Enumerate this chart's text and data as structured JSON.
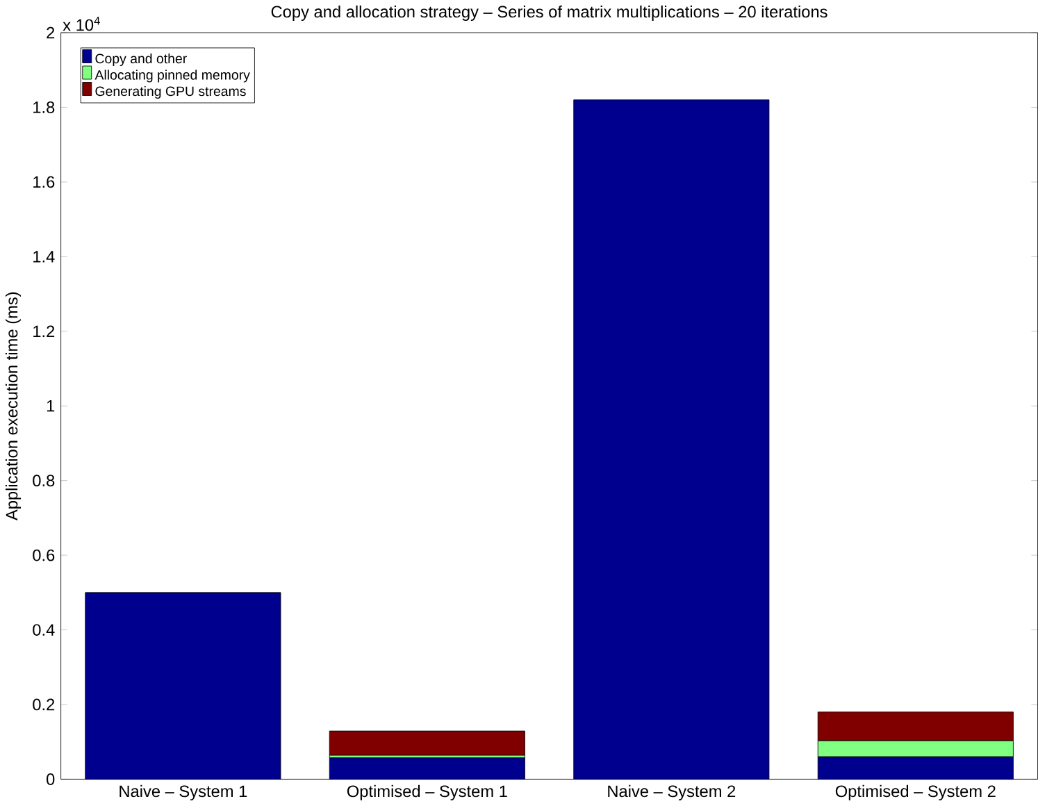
{
  "chart_data": {
    "type": "bar",
    "stacked": true,
    "title": "Copy and allocation strategy – Series of matrix multiplications – 20 iterations",
    "ylabel": "Application execution time (ms)",
    "categories": [
      "Naive – System 1",
      "Optimised – System 1",
      "Naive – System 2",
      "Optimised – System 2"
    ],
    "series": [
      {
        "name": "Copy and other",
        "color": "#00008f",
        "values": [
          0.5,
          0.057,
          1.82,
          0.06
        ]
      },
      {
        "name": "Allocating pinned memory",
        "color": "#80ff80",
        "values": [
          0,
          0.007,
          0,
          0.043
        ]
      },
      {
        "name": "Generating GPU streams",
        "color": "#800000",
        "values": [
          0,
          0.065,
          0,
          0.077
        ]
      }
    ],
    "ylim": [
      0,
      2
    ],
    "yticks": [
      0,
      0.2,
      0.4,
      0.6,
      0.8,
      1,
      1.2,
      1.4,
      1.6,
      1.8,
      2
    ],
    "annotations": [
      "x 10$^{4}$"
    ],
    "legend": "top left",
    "grid": false
  }
}
